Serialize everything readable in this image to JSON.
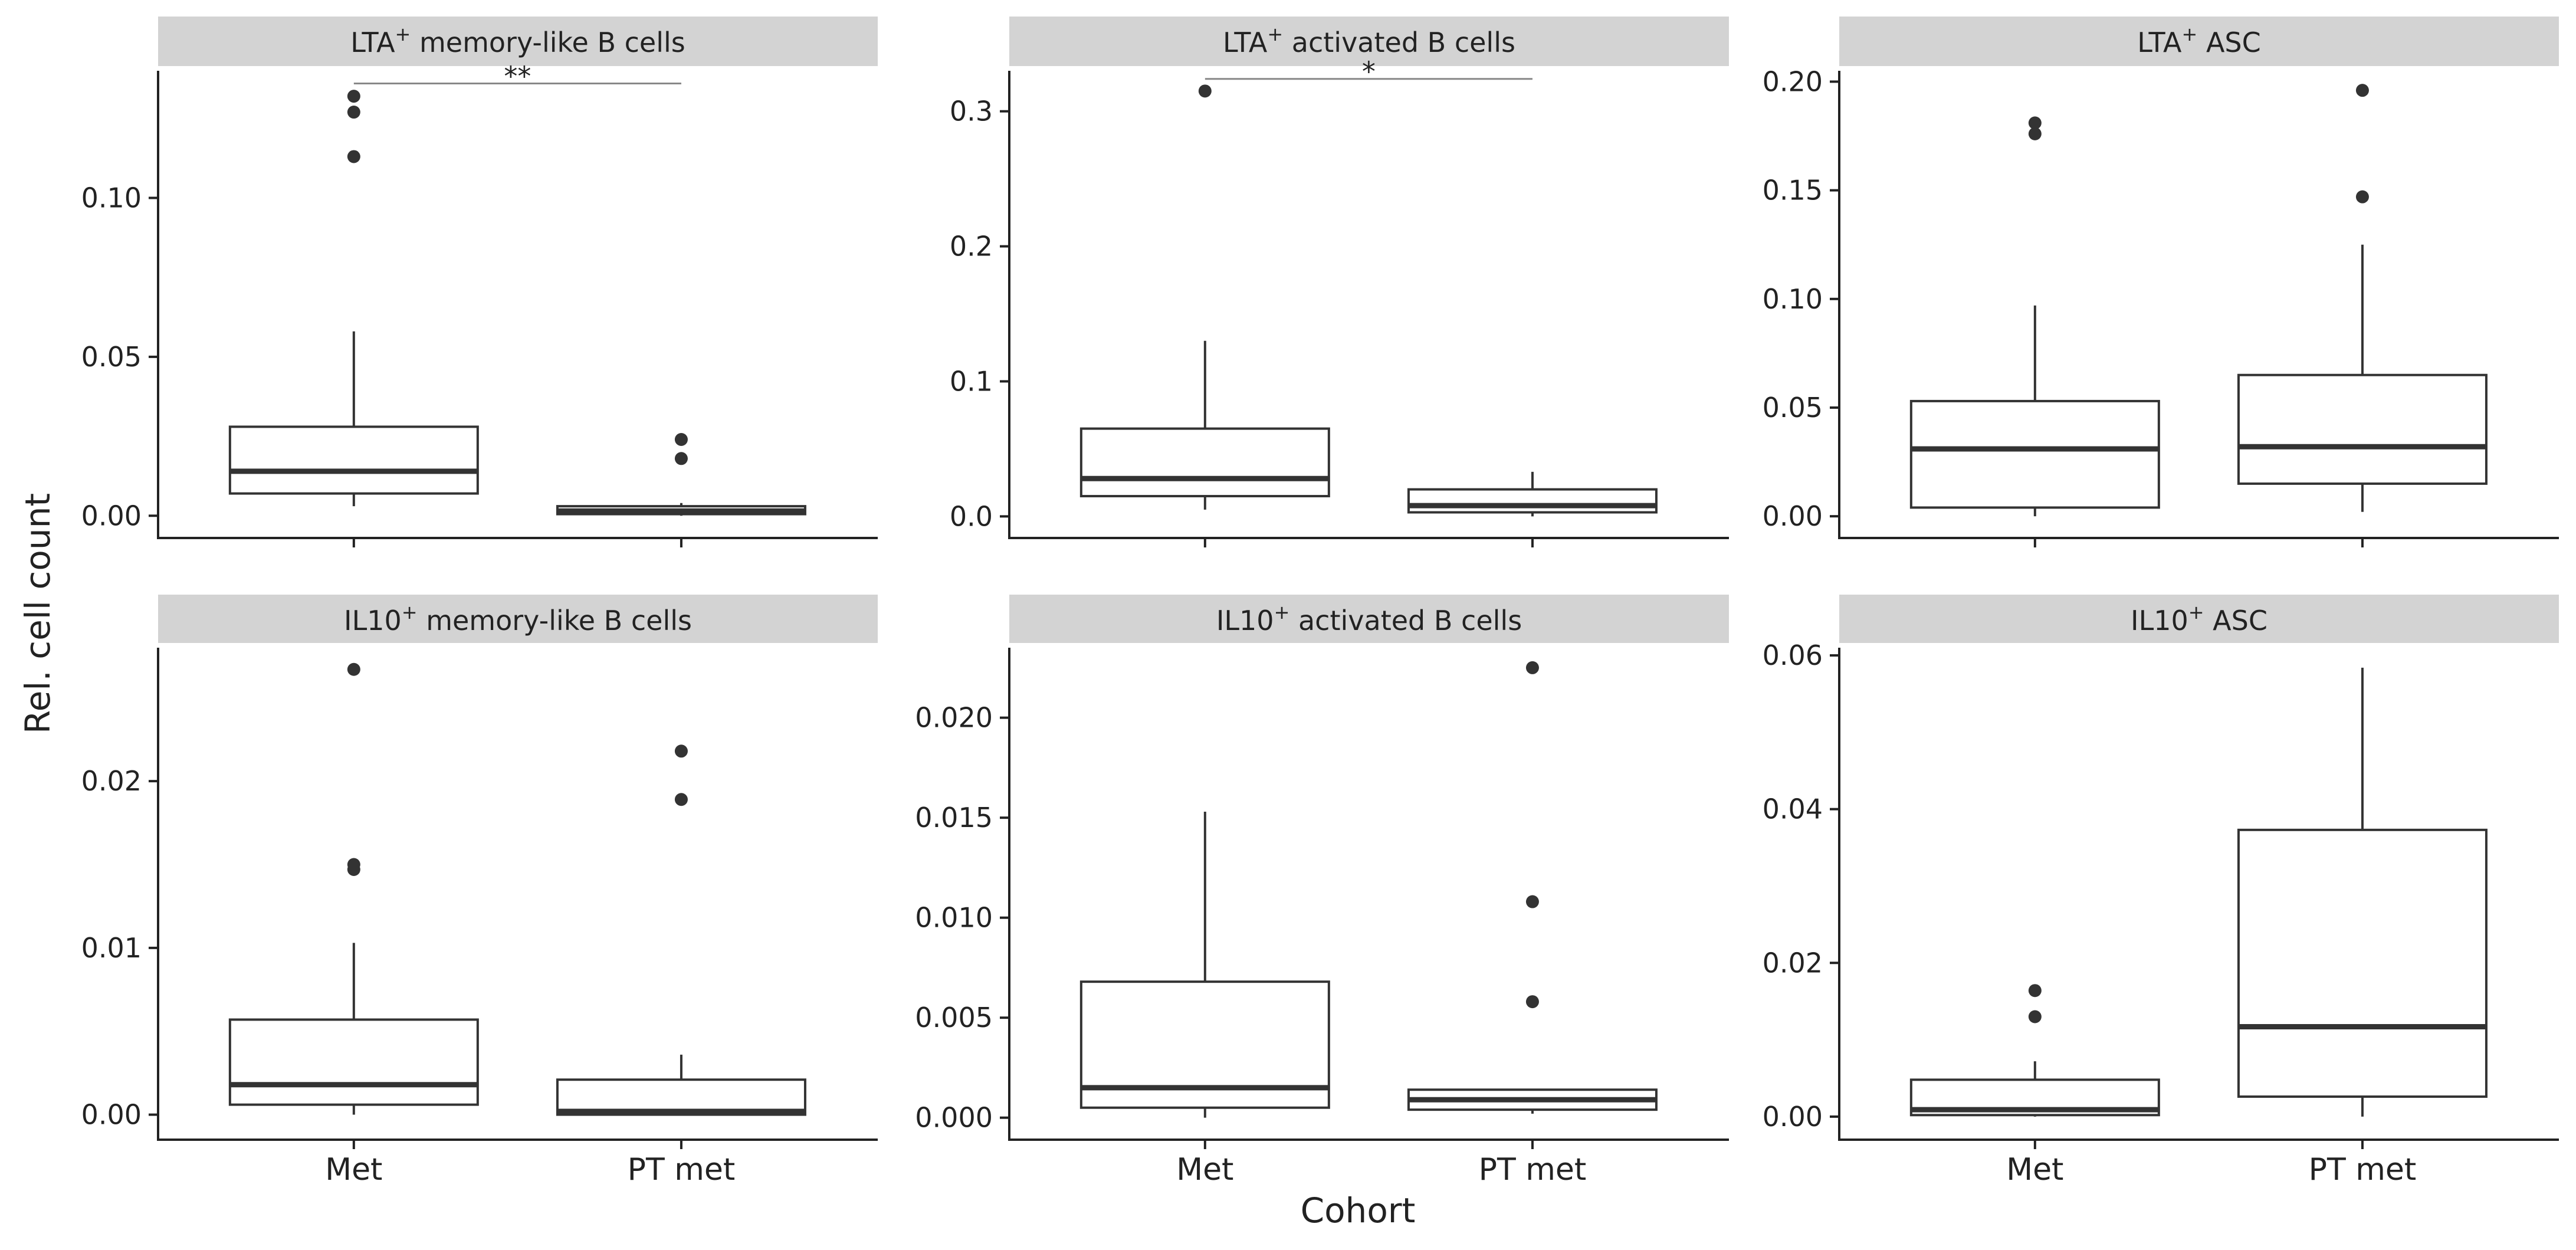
{
  "chart_data": {
    "type": "boxplot",
    "xlabel": "Cohort",
    "ylabel": "Rel. cell count",
    "categories": [
      "Met",
      "PT met"
    ],
    "panels": [
      {
        "title_pre": "LTA",
        "title_sup": "+",
        "title_post": " memory-like B cells",
        "ylim": [
          -0.007,
          0.14
        ],
        "yticks": [
          0.0,
          0.05,
          0.1
        ],
        "ytick_labels": [
          "0.00",
          "0.05",
          "0.10"
        ],
        "groups": [
          {
            "category": "Met",
            "whisker_low": 0.003,
            "q1": 0.007,
            "median": 0.014,
            "q3": 0.028,
            "whisker_high": 0.058,
            "outliers": [
              0.113,
              0.127,
              0.132
            ]
          },
          {
            "category": "PT met",
            "whisker_low": 0.0,
            "q1": 0.0005,
            "median": 0.0015,
            "q3": 0.003,
            "whisker_high": 0.004,
            "outliers": [
              0.018,
              0.024
            ]
          }
        ],
        "significance": {
          "label": "**",
          "y": 0.136
        }
      },
      {
        "title_pre": "LTA",
        "title_sup": "+",
        "title_post": " activated B cells",
        "ylim": [
          -0.016,
          0.33
        ],
        "yticks": [
          0.0,
          0.1,
          0.2,
          0.3
        ],
        "ytick_labels": [
          "0.0",
          "0.1",
          "0.2",
          "0.3"
        ],
        "groups": [
          {
            "category": "Met",
            "whisker_low": 0.005,
            "q1": 0.015,
            "median": 0.028,
            "q3": 0.065,
            "whisker_high": 0.13,
            "outliers": [
              0.315
            ]
          },
          {
            "category": "PT met",
            "whisker_low": 0.0,
            "q1": 0.003,
            "median": 0.008,
            "q3": 0.02,
            "whisker_high": 0.033,
            "outliers": []
          }
        ],
        "significance": {
          "label": "*",
          "y": 0.324
        }
      },
      {
        "title_pre": "LTA",
        "title_sup": "+",
        "title_post": " ASC",
        "ylim": [
          -0.01,
          0.205
        ],
        "yticks": [
          0.0,
          0.05,
          0.1,
          0.15,
          0.2
        ],
        "ytick_labels": [
          "0.00",
          "0.05",
          "0.10",
          "0.15",
          "0.20"
        ],
        "groups": [
          {
            "category": "Met",
            "whisker_low": 0.0,
            "q1": 0.004,
            "median": 0.031,
            "q3": 0.053,
            "whisker_high": 0.097,
            "outliers": [
              0.176,
              0.181
            ]
          },
          {
            "category": "PT met",
            "whisker_low": 0.002,
            "q1": 0.015,
            "median": 0.032,
            "q3": 0.065,
            "whisker_high": 0.125,
            "outliers": [
              0.147,
              0.196
            ]
          }
        ],
        "significance": null
      },
      {
        "title_pre": "IL10",
        "title_sup": "+",
        "title_post": " memory-like B cells",
        "ylim": [
          -0.0015,
          0.028
        ],
        "yticks": [
          0.0,
          0.01,
          0.02
        ],
        "ytick_labels": [
          "0.00",
          "0.01",
          "0.02"
        ],
        "groups": [
          {
            "category": "Met",
            "whisker_low": 0.0,
            "q1": 0.0006,
            "median": 0.0018,
            "q3": 0.0057,
            "whisker_high": 0.0103,
            "outliers": [
              0.0147,
              0.015,
              0.0267
            ]
          },
          {
            "category": "PT met",
            "whisker_low": 0.0,
            "q1": 0.0,
            "median": 0.0002,
            "q3": 0.0021,
            "whisker_high": 0.0036,
            "outliers": [
              0.0189,
              0.0218
            ]
          }
        ],
        "significance": null
      },
      {
        "title_pre": "IL10",
        "title_sup": "+",
        "title_post": " activated B cells",
        "ylim": [
          -0.0011,
          0.0235
        ],
        "yticks": [
          0.0,
          0.005,
          0.01,
          0.015,
          0.02
        ],
        "ytick_labels": [
          "0.000",
          "0.005",
          "0.010",
          "0.015",
          "0.020"
        ],
        "groups": [
          {
            "category": "Met",
            "whisker_low": 0.0,
            "q1": 0.0005,
            "median": 0.0015,
            "q3": 0.0068,
            "whisker_high": 0.0153,
            "outliers": []
          },
          {
            "category": "PT met",
            "whisker_low": 0.0002,
            "q1": 0.0004,
            "median": 0.0009,
            "q3": 0.0014,
            "whisker_high": 0.0014,
            "outliers": [
              0.0058,
              0.0108,
              0.0225
            ]
          }
        ],
        "significance": null
      },
      {
        "title_pre": "IL10",
        "title_sup": "+",
        "title_post": " ASC",
        "ylim": [
          -0.003,
          0.061
        ],
        "yticks": [
          0.0,
          0.02,
          0.04,
          0.06
        ],
        "ytick_labels": [
          "0.00",
          "0.02",
          "0.04",
          "0.06"
        ],
        "groups": [
          {
            "category": "Met",
            "whisker_low": 0.0,
            "q1": 0.0002,
            "median": 0.0009,
            "q3": 0.0048,
            "whisker_high": 0.0072,
            "outliers": [
              0.013,
              0.0164
            ]
          },
          {
            "category": "PT met",
            "whisker_low": 0.0,
            "q1": 0.0026,
            "median": 0.0117,
            "q3": 0.0373,
            "whisker_high": 0.0584,
            "outliers": []
          }
        ],
        "significance": null
      }
    ]
  }
}
